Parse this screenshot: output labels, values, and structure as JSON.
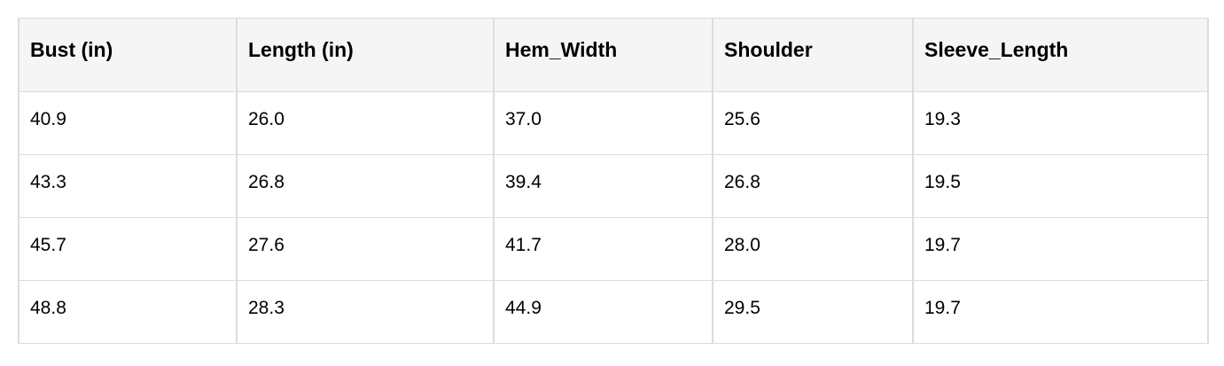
{
  "table": {
    "headers": [
      "Bust (in)",
      "Length (in)",
      "Hem_Width",
      "Shoulder",
      "Sleeve_Length"
    ],
    "rows": [
      [
        "40.9",
        "26.0",
        "37.0",
        "25.6",
        "19.3"
      ],
      [
        "43.3",
        "26.8",
        "39.4",
        "26.8",
        "19.5"
      ],
      [
        "45.7",
        "27.6",
        "41.7",
        "28.0",
        "19.7"
      ],
      [
        "48.8",
        "28.3",
        "44.9",
        "29.5",
        "19.7"
      ]
    ]
  }
}
